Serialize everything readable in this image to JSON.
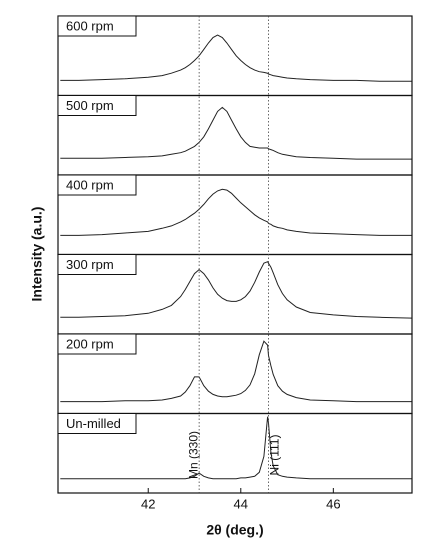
{
  "chart_data": {
    "type": "line",
    "layout": "stacked",
    "x_label": "2θ (deg.)",
    "y_label": "Intensity (a.u.)",
    "x": [
      40.1,
      40.5,
      41.0,
      41.5,
      42.0,
      42.3,
      42.5,
      42.7,
      42.8,
      42.9,
      43.0,
      43.1,
      43.2,
      43.3,
      43.4,
      43.5,
      43.6,
      43.7,
      43.8,
      43.9,
      44.0,
      44.1,
      44.2,
      44.3,
      44.4,
      44.5,
      44.58,
      44.6,
      44.65,
      44.7,
      44.8,
      44.9,
      45.0,
      45.2,
      45.5,
      46.0,
      46.5,
      47.0,
      47.7
    ],
    "xlim": [
      40.05,
      47.7
    ],
    "xticks": [
      42,
      44,
      46
    ],
    "ylim": [
      0,
      100
    ],
    "reference_lines": [
      43.1,
      44.6
    ],
    "annotations": [
      {
        "text": "Mn (330)",
        "x": 43.0
      },
      {
        "text": "Ni (111)",
        "x": 44.75
      }
    ],
    "series": [
      {
        "name": "600 rpm",
        "color": "#222222",
        "values": [
          19,
          19,
          20,
          21,
          23,
          25,
          28,
          32,
          35,
          39,
          44,
          50,
          58,
          66,
          73,
          76,
          73,
          66,
          58,
          50,
          44,
          39,
          35,
          32,
          30,
          29,
          28,
          27,
          26,
          25,
          24,
          23,
          22,
          21,
          20,
          19,
          19,
          18,
          18
        ]
      },
      {
        "name": "500 rpm",
        "color": "#222222",
        "values": [
          21,
          21,
          21,
          22,
          23,
          24,
          26,
          28,
          30,
          33,
          36,
          41,
          48,
          58,
          69,
          80,
          85,
          80,
          69,
          58,
          48,
          41,
          36,
          35,
          34,
          34,
          34,
          33,
          32,
          31,
          28,
          26,
          25,
          23,
          22,
          21,
          20,
          20,
          20
        ]
      },
      {
        "name": "400 rpm",
        "color": "#222222",
        "values": [
          24,
          24,
          25,
          27,
          29,
          33,
          36,
          41,
          44,
          48,
          52,
          57,
          63,
          70,
          76,
          80,
          82,
          81,
          77,
          71,
          65,
          60,
          55,
          50,
          46,
          43,
          41,
          39,
          38,
          36,
          34,
          33,
          31,
          29,
          27,
          26,
          25,
          24,
          24
        ]
      },
      {
        "name": "300 rpm",
        "color": "#222222",
        "values": [
          21,
          21,
          22,
          23,
          26,
          31,
          36,
          47,
          56,
          66,
          76,
          81,
          76,
          68,
          58,
          50,
          45,
          42,
          41,
          41,
          43,
          47,
          54,
          65,
          78,
          89,
          91,
          89,
          84,
          77,
          62,
          51,
          43,
          34,
          27,
          24,
          22,
          21,
          20
        ]
      },
      {
        "name": "200 rpm",
        "color": "#222222",
        "values": [
          15,
          15,
          15,
          16,
          16,
          17,
          19,
          22,
          27,
          35,
          46,
          46,
          35,
          28,
          24,
          22,
          21,
          21,
          22,
          23,
          25,
          29,
          36,
          50,
          74,
          91,
          86,
          73,
          60,
          49,
          35,
          28,
          24,
          20,
          17,
          16,
          15,
          15,
          15
        ]
      },
      {
        "name": "Un-milled",
        "color": "#222222",
        "values": [
          18,
          18,
          18,
          18,
          18,
          18,
          18,
          18,
          18,
          19,
          21,
          25,
          21,
          19,
          18,
          18,
          18,
          18,
          18,
          18,
          19,
          19,
          20,
          21,
          26,
          46,
          96,
          88,
          51,
          34,
          23,
          21,
          20,
          19,
          18,
          18,
          18,
          18,
          18
        ]
      }
    ]
  }
}
